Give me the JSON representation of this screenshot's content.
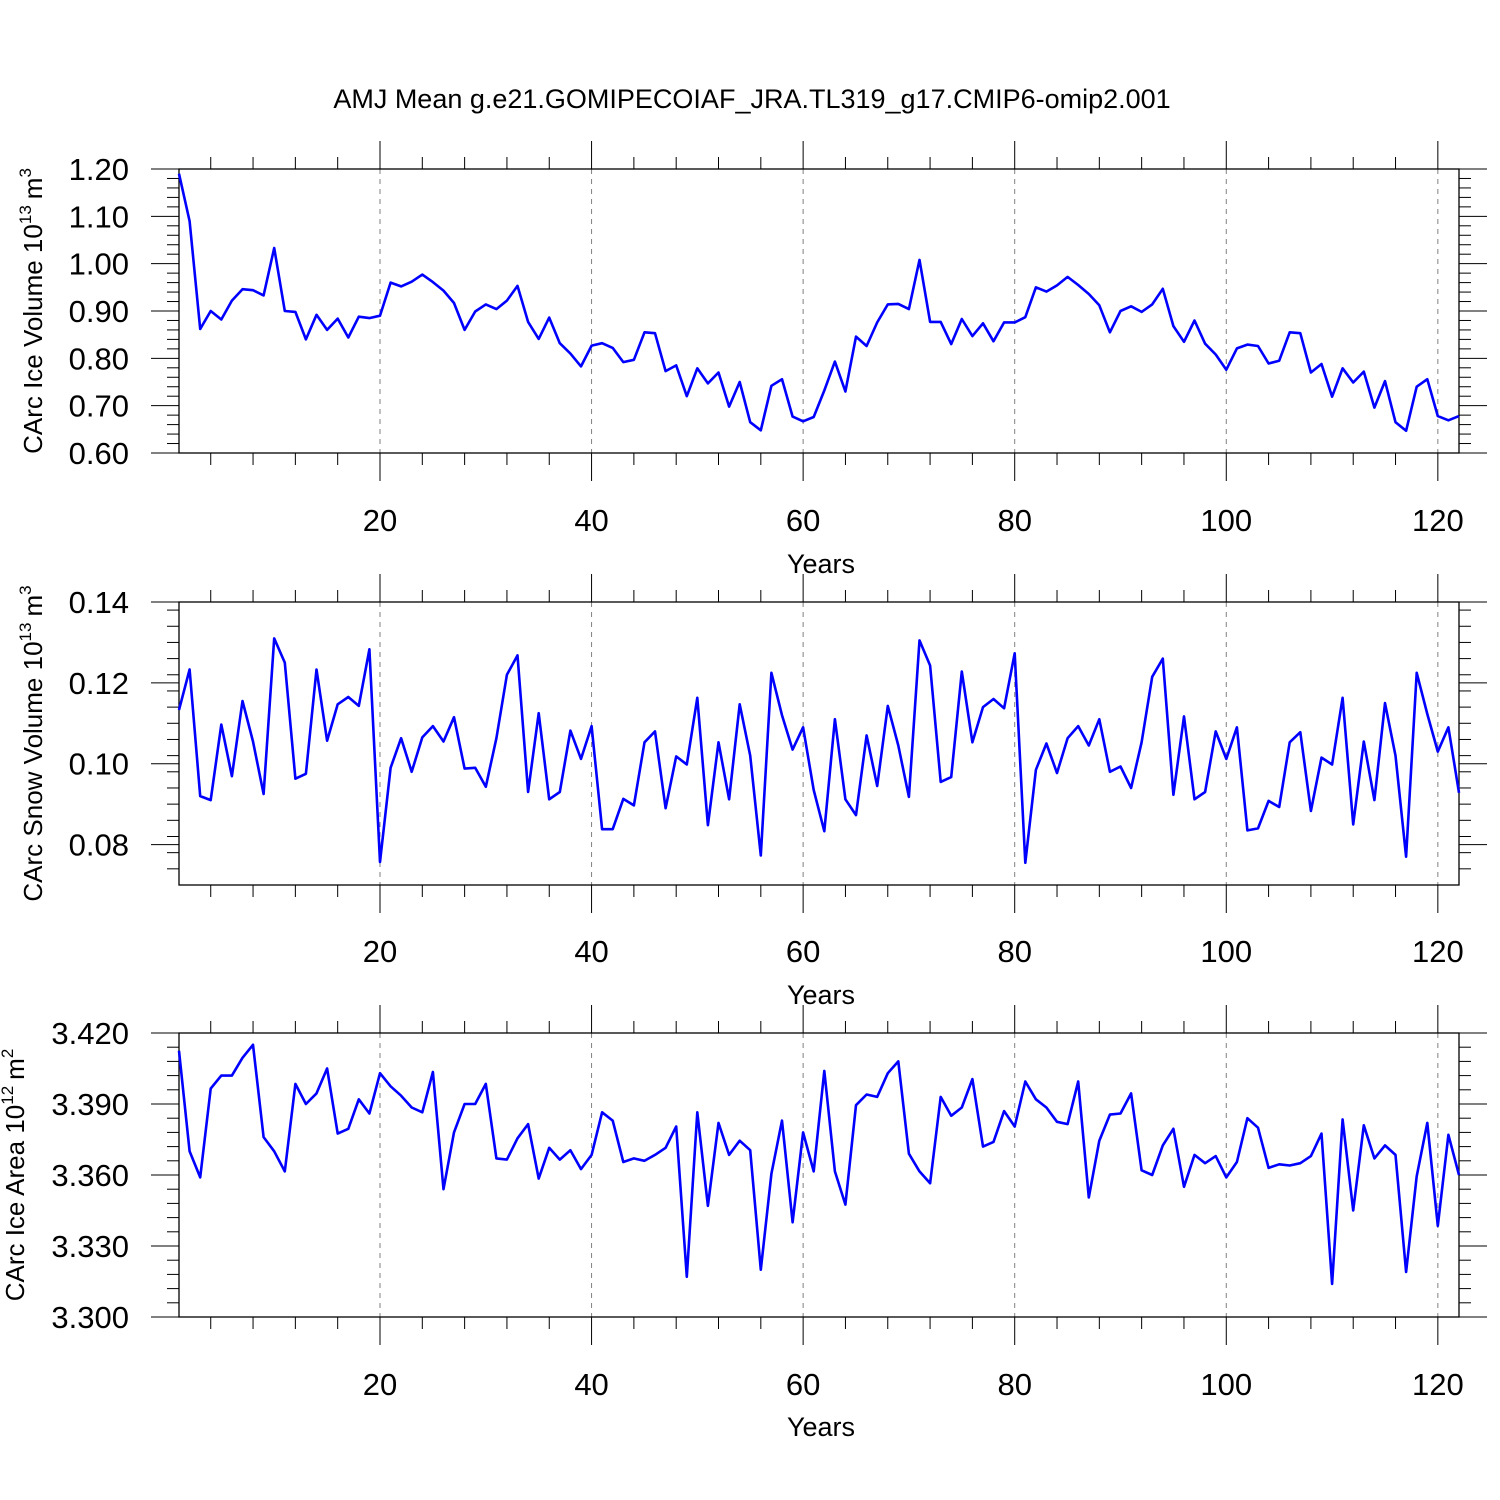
{
  "figure_title": "AMJ Mean g.e21.GOMIPECOIAF_JRA.TL319_g17.CMIP6-omip2.001",
  "colors": {
    "line": "#0000ff",
    "axis": "#000000",
    "grid": "#808080"
  },
  "chart_data": [
    {
      "type": "line",
      "ylabel": "CArc Ice Volume 10",
      "ylabel_exp": "13",
      "ylabel_unit": "m",
      "ylabel_unit_exp": "3",
      "xlabel": "Years",
      "xlim": [
        1,
        122
      ],
      "ylim": [
        0.6,
        1.2
      ],
      "x_ticks": [
        20,
        40,
        60,
        80,
        100,
        120
      ],
      "y_ticks": [
        "0.60",
        "0.70",
        "0.80",
        "0.90",
        "1.00",
        "1.10",
        "1.20"
      ],
      "grid": "dashed vertical at major x ticks",
      "series": [
        {
          "name": "CArc Ice Volume",
          "values": [
            1.19,
            1.09,
            0.862,
            0.9,
            0.882,
            0.922,
            0.946,
            0.944,
            0.933,
            1.033,
            0.9,
            0.898,
            0.84,
            0.892,
            0.86,
            0.884,
            0.844,
            0.888,
            0.885,
            0.89,
            0.96,
            0.952,
            0.962,
            0.977,
            0.961,
            0.943,
            0.917,
            0.86,
            0.899,
            0.914,
            0.904,
            0.922,
            0.953,
            0.877,
            0.841,
            0.886,
            0.832,
            0.81,
            0.783,
            0.827,
            0.832,
            0.822,
            0.792,
            0.797,
            0.855,
            0.853,
            0.773,
            0.785,
            0.72,
            0.779,
            0.747,
            0.77,
            0.698,
            0.75,
            0.665,
            0.648,
            0.742,
            0.756,
            0.677,
            0.667,
            0.676,
            0.732,
            0.793,
            0.73,
            0.846,
            0.826,
            0.876,
            0.914,
            0.915,
            0.904,
            1.008,
            0.877,
            0.877,
            0.83,
            0.883,
            0.847,
            0.874,
            0.836,
            0.876,
            0.876,
            0.887,
            0.95,
            0.941,
            0.954,
            0.972,
            0.955,
            0.936,
            0.912,
            0.855,
            0.9,
            0.91,
            0.898,
            0.914,
            0.947,
            0.868,
            0.835,
            0.88,
            0.831,
            0.808,
            0.776,
            0.821,
            0.829,
            0.826,
            0.789,
            0.795,
            0.855,
            0.853,
            0.77,
            0.788,
            0.719,
            0.779,
            0.749,
            0.772,
            0.696,
            0.752,
            0.665,
            0.647,
            0.74,
            0.756,
            0.678,
            0.669,
            0.678
          ]
        }
      ]
    },
    {
      "type": "line",
      "ylabel": "CArc Snow Volume 10",
      "ylabel_exp": "13",
      "ylabel_unit": "m",
      "ylabel_unit_exp": "3",
      "xlabel": "Years",
      "xlim": [
        1,
        122
      ],
      "ylim": [
        0.07,
        0.14
      ],
      "x_ticks": [
        20,
        40,
        60,
        80,
        100,
        120
      ],
      "y_ticks": [
        "0.08",
        "0.10",
        "0.12",
        "0.14"
      ],
      "grid": "dashed vertical at major x ticks",
      "series": [
        {
          "name": "CArc Snow Volume",
          "values": [
            0.1133,
            0.1233,
            0.092,
            0.091,
            0.1097,
            0.0969,
            0.1155,
            0.1055,
            0.0925,
            0.131,
            0.125,
            0.0963,
            0.0975,
            0.1233,
            0.1057,
            0.1147,
            0.1165,
            0.1143,
            0.1283,
            0.0757,
            0.099,
            0.1063,
            0.098,
            0.1065,
            0.1093,
            0.1055,
            0.1115,
            0.0988,
            0.099,
            0.0943,
            0.1063,
            0.122,
            0.1268,
            0.093,
            0.1125,
            0.0912,
            0.093,
            0.1082,
            0.1012,
            0.1093,
            0.0838,
            0.0838,
            0.0913,
            0.0897,
            0.1053,
            0.108,
            0.089,
            0.1018,
            0.0998,
            0.1163,
            0.0848,
            0.1053,
            0.0912,
            0.1147,
            0.102,
            0.0773,
            0.1225,
            0.112,
            0.1035,
            0.109,
            0.0935,
            0.0833,
            0.111,
            0.0912,
            0.0873,
            0.107,
            0.0945,
            0.1143,
            0.1045,
            0.0918,
            0.1305,
            0.1243,
            0.0955,
            0.0967,
            0.1228,
            0.1053,
            0.114,
            0.116,
            0.1137,
            0.1273,
            0.0755,
            0.0985,
            0.105,
            0.0977,
            0.1063,
            0.1093,
            0.1045,
            0.111,
            0.098,
            0.0993,
            0.094,
            0.1053,
            0.1215,
            0.126,
            0.0923,
            0.1117,
            0.0912,
            0.093,
            0.108,
            0.1012,
            0.109,
            0.0835,
            0.084,
            0.0908,
            0.0893,
            0.1053,
            0.1078,
            0.0883,
            0.1015,
            0.0998,
            0.1163,
            0.085,
            0.1055,
            0.091,
            0.115,
            0.102,
            0.077,
            0.1225,
            0.1123,
            0.103,
            0.109,
            0.0928
          ]
        }
      ]
    },
    {
      "type": "line",
      "ylabel": "CArc Ice Area 10",
      "ylabel_exp": "12",
      "ylabel_unit": "m",
      "ylabel_unit_exp": "2",
      "xlabel": "Years",
      "xlim": [
        1,
        122
      ],
      "ylim": [
        3.3,
        3.42
      ],
      "x_ticks": [
        20,
        40,
        60,
        80,
        100,
        120
      ],
      "y_ticks": [
        "3.300",
        "3.330",
        "3.360",
        "3.390",
        "3.420"
      ],
      "grid": "dashed vertical at major x ticks",
      "series": [
        {
          "name": "CArc Ice Area",
          "values": [
            3.4125,
            3.37,
            3.359,
            3.3965,
            3.402,
            3.402,
            3.4095,
            3.415,
            3.376,
            3.37,
            3.3615,
            3.3985,
            3.39,
            3.3945,
            3.405,
            3.3775,
            3.3795,
            3.392,
            3.386,
            3.403,
            3.3975,
            3.3935,
            3.3885,
            3.3865,
            3.4035,
            3.354,
            3.378,
            3.39,
            3.39,
            3.3985,
            3.367,
            3.3665,
            3.3755,
            3.3815,
            3.3585,
            3.3715,
            3.3665,
            3.3705,
            3.3625,
            3.3685,
            3.3865,
            3.383,
            3.3655,
            3.367,
            3.366,
            3.3685,
            3.3715,
            3.3805,
            3.317,
            3.3865,
            3.347,
            3.382,
            3.3685,
            3.3745,
            3.3705,
            3.32,
            3.3605,
            3.383,
            3.34,
            3.378,
            3.3615,
            3.404,
            3.3615,
            3.3475,
            3.3895,
            3.394,
            3.393,
            3.403,
            3.408,
            3.369,
            3.3615,
            3.3565,
            3.393,
            3.385,
            3.3885,
            3.4005,
            3.372,
            3.374,
            3.387,
            3.3805,
            3.3995,
            3.392,
            3.3885,
            3.3825,
            3.3815,
            3.3995,
            3.3505,
            3.3745,
            3.3855,
            3.386,
            3.3945,
            3.362,
            3.36,
            3.3725,
            3.3795,
            3.355,
            3.3685,
            3.365,
            3.368,
            3.359,
            3.3655,
            3.384,
            3.38,
            3.363,
            3.3645,
            3.364,
            3.365,
            3.368,
            3.3775,
            3.314,
            3.3835,
            3.345,
            3.381,
            3.367,
            3.3725,
            3.3685,
            3.319,
            3.3595,
            3.382,
            3.3385,
            3.377,
            3.36
          ]
        }
      ]
    }
  ]
}
